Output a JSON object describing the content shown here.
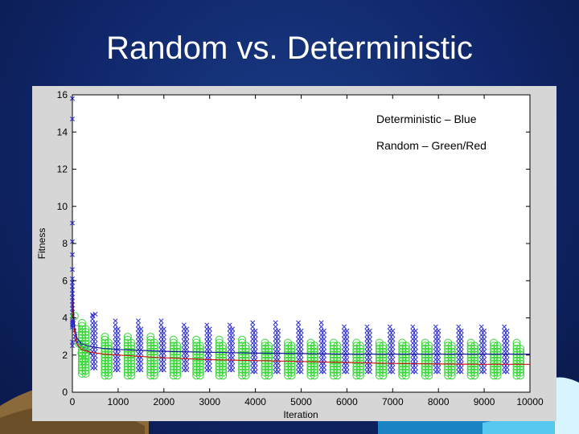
{
  "slide": {
    "title": "Random vs. Deterministic"
  },
  "colors": {
    "background": "#10266a",
    "deterministic": "#2a2ad6",
    "random_points": "#33d633",
    "random_mean": "#c81414",
    "deterministic_mean": "#1a1a9a"
  },
  "chart_data": {
    "type": "scatter",
    "xlabel": "Iteration",
    "ylabel": "Fitness",
    "xlim": [
      0,
      10000
    ],
    "ylim": [
      0,
      16
    ],
    "xticks": [
      0,
      1000,
      2000,
      3000,
      4000,
      5000,
      6000,
      7000,
      8000,
      9000,
      10000
    ],
    "yticks": [
      0,
      2,
      4,
      6,
      8,
      10,
      12,
      14,
      16
    ],
    "legend_text": [
      "Deterministic – Blue",
      "Random – Green/Red"
    ],
    "legend_placement": "top-right",
    "grid": false,
    "series": [
      {
        "marker": "x",
        "color": "#2a2ad6",
        "x": [
          0,
          0,
          0,
          0,
          0,
          0,
          0,
          0,
          0,
          0,
          0,
          0,
          0,
          0,
          0,
          0,
          0,
          0,
          0,
          0,
          0,
          0,
          0,
          0,
          20,
          40,
          60,
          80,
          100,
          150,
          200,
          250,
          300,
          350,
          400,
          450,
          500
        ],
        "y": [
          15.8,
          14.7,
          9.1,
          8.1,
          7.4,
          6.6,
          6.1,
          5.9,
          5.7,
          5.5,
          5.3,
          5.1,
          4.9,
          4.7,
          4.5,
          4.3,
          4.1,
          3.9,
          3.8,
          3.7,
          3.6,
          3.5,
          2.7,
          2.5,
          3.7,
          3.3,
          3.0,
          2.8,
          2.7,
          2.6,
          2.5,
          2.4,
          2.3,
          2.2,
          2.1,
          4.1,
          4.2
        ],
        "columns_every": 500,
        "columns_top": [
          4.2,
          3.9,
          3.9,
          3.9,
          3.8,
          3.8,
          3.8,
          3.8,
          3.8,
          3.8,
          3.8,
          3.7,
          3.7,
          3.7,
          3.7,
          3.7,
          3.7,
          3.7,
          3.7,
          3.7
        ],
        "columns_bottom": [
          1.3,
          1.2,
          1.2,
          1.2,
          1.2,
          1.2,
          1.2,
          1.1,
          1.1,
          1.1,
          1.1,
          1.1,
          1.1,
          1.1,
          1.1,
          1.1,
          1.1,
          1.1,
          1.1,
          1.1
        ]
      },
      {
        "marker": "o",
        "color": "#33d633",
        "x": [
          50,
          100,
          150,
          200,
          250
        ],
        "y": [
          4.1,
          3.4,
          2.6,
          2.1,
          1.7
        ],
        "columns_every": 500,
        "columns_offset": 250,
        "columns_top": [
          3.8,
          3.1,
          3.0,
          3.0,
          2.9,
          2.9,
          2.9,
          2.9,
          2.8,
          2.8,
          2.8,
          2.8,
          2.8,
          2.8,
          2.8,
          2.8,
          2.8,
          2.8,
          2.8,
          2.7
        ],
        "columns_bottom": [
          1.0,
          0.9,
          0.9,
          0.9,
          0.9,
          0.9,
          0.9,
          0.9,
          0.9,
          0.9,
          0.9,
          0.9,
          0.9,
          0.9,
          0.9,
          0.9,
          0.9,
          0.9,
          0.9,
          0.9
        ]
      },
      {
        "marker": "line",
        "color": "#c81414",
        "x": [
          0,
          20,
          50,
          100,
          200,
          400,
          700,
          1000,
          2000,
          3000,
          4000,
          5000,
          6000,
          7000,
          8000,
          9000,
          10000
        ],
        "y": [
          5.6,
          4.0,
          3.2,
          2.6,
          2.3,
          2.15,
          2.05,
          2.0,
          1.85,
          1.75,
          1.7,
          1.65,
          1.6,
          1.55,
          1.52,
          1.5,
          1.5
        ]
      },
      {
        "marker": "line",
        "color": "#1a1a9a",
        "x": [
          0,
          20,
          50,
          100,
          200,
          400,
          700,
          1000,
          2000,
          3000,
          4000,
          5000,
          6000,
          7000,
          8000,
          9000,
          10000
        ],
        "y": [
          6.0,
          4.5,
          3.5,
          2.9,
          2.6,
          2.45,
          2.35,
          2.3,
          2.2,
          2.15,
          2.1,
          2.08,
          2.05,
          2.05,
          2.05,
          2.05,
          2.05
        ]
      }
    ]
  }
}
